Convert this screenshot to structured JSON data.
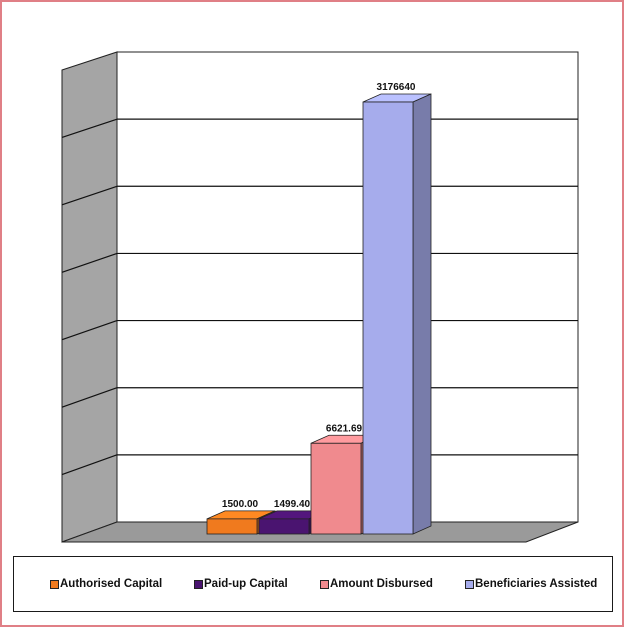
{
  "chart_data": {
    "type": "bar",
    "style": "3d-clustered",
    "categories": [
      "Authorised Capital",
      "Paid-up Capital",
      "Amount Disbursed",
      "Beneficiaries Assisted"
    ],
    "values": [
      1500.0,
      1499.4,
      6621.69,
      3176640
    ],
    "data_labels": [
      "1500.00",
      "1499.40",
      "6621.69",
      "3176640"
    ],
    "value_scale": "nonlinear (bar heights not proportional to values)",
    "relative_heights": [
      0.035,
      0.035,
      0.21,
      1.0
    ],
    "title": "",
    "xlabel": "",
    "ylabel": "",
    "y_tick_labels": "none shown",
    "grid": true,
    "gridline_count": 7,
    "legend_position": "bottom",
    "legend": [
      {
        "label": "Authorised Capital",
        "color": "#f07a1e"
      },
      {
        "label": "Paid-up Capital",
        "color": "#4a1470"
      },
      {
        "label": "Amount Disbursed",
        "color": "#f08a8e"
      },
      {
        "label": "Beneficiaries Assisted",
        "color": "#a6acec"
      }
    ],
    "colors": {
      "wall": "#ffffff",
      "side_wall": "#a5a5a5",
      "floor": "#9a9a9a",
      "border": "#e07f86"
    }
  }
}
